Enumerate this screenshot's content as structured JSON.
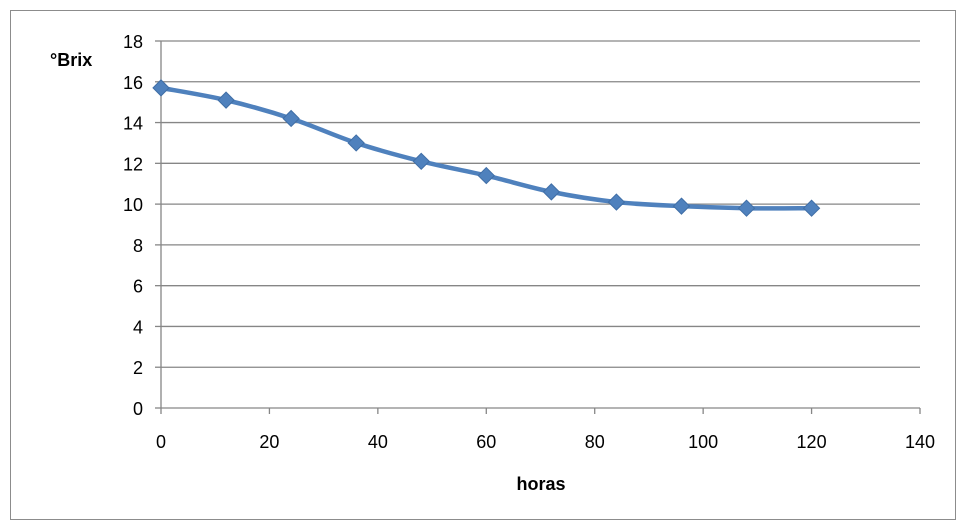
{
  "chart_data": {
    "type": "line",
    "title": "",
    "xlabel": "horas",
    "ylabel": "°Brix",
    "xlim": [
      0,
      140
    ],
    "ylim": [
      0,
      18
    ],
    "xticks": [
      0,
      20,
      40,
      60,
      80,
      100,
      120,
      140
    ],
    "yticks": [
      0,
      2,
      4,
      6,
      8,
      10,
      12,
      14,
      16,
      18
    ],
    "grid": "horizontal",
    "legend": "none",
    "series": [
      {
        "marker": "diamond",
        "color": "#4f81bd",
        "x": [
          0,
          12,
          24,
          36,
          48,
          60,
          72,
          84,
          96,
          108,
          120
        ],
        "y": [
          15.7,
          15.1,
          14.2,
          13.0,
          12.1,
          11.4,
          10.6,
          10.1,
          9.9,
          9.8,
          9.8
        ]
      }
    ]
  }
}
